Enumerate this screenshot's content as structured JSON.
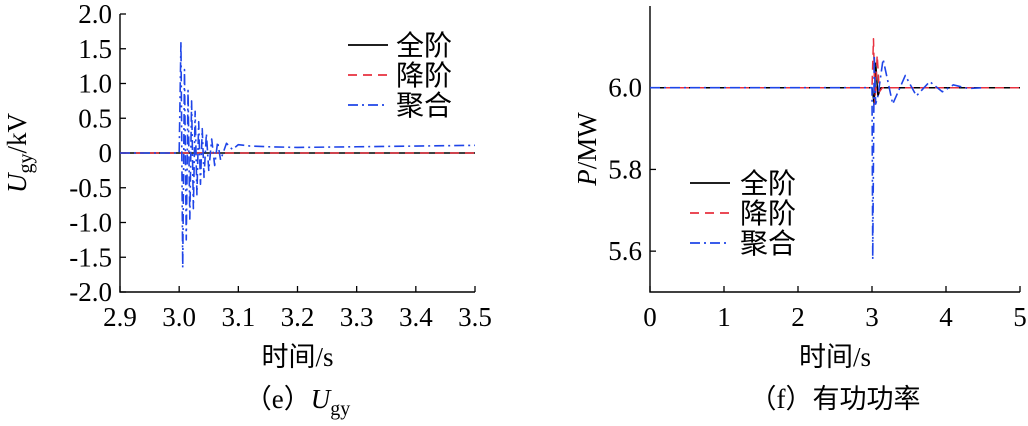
{
  "colors": {
    "full": "#000000",
    "reduced": "#e8313f",
    "aggregate": "#1f45e8"
  },
  "chart_data": [
    {
      "id": "e",
      "type": "line",
      "caption_prefix": "（e）",
      "caption_symbol": "U",
      "caption_sub": "gy",
      "xlabel": "时间/s",
      "ylabel_symbol": "U",
      "ylabel_sub": "gy",
      "ylabel_unit": "/kV",
      "xlim": [
        2.9,
        3.5
      ],
      "ylim": [
        -2.0,
        2.0
      ],
      "xticks": [
        2.9,
        3.0,
        3.1,
        3.2,
        3.3,
        3.4,
        3.5
      ],
      "xtick_labels": [
        "2.9",
        "3.0",
        "3.1",
        "3.2",
        "3.3",
        "3.4",
        "3.5"
      ],
      "yticks": [
        2.0,
        1.5,
        1.0,
        0.5,
        0,
        -0.5,
        -1.0,
        -1.5,
        -2.0
      ],
      "ytick_labels": [
        "2.0",
        "1.5",
        "1.0",
        "0.5",
        "0",
        "-0.5",
        "-1.0",
        "-1.5",
        "-2.0"
      ],
      "legend": [
        "全阶",
        "降阶",
        "聚合"
      ],
      "legend_position": "top-right",
      "series": [
        {
          "name": "全阶",
          "style": "solid",
          "x": [
            2.9,
            3.5
          ],
          "y": [
            0,
            0
          ]
        },
        {
          "name": "降阶",
          "style": "dashed",
          "x": [
            2.9,
            3.5
          ],
          "y": [
            0,
            0
          ]
        },
        {
          "name": "聚合",
          "style": "dashdot",
          "x": [
            2.9,
            3.0,
            3.003,
            3.006,
            3.009,
            3.012,
            3.015,
            3.018,
            3.021,
            3.024,
            3.027,
            3.03,
            3.033,
            3.036,
            3.039,
            3.042,
            3.046,
            3.05,
            3.055,
            3.06,
            3.065,
            3.07,
            3.08,
            3.09,
            3.1,
            3.12,
            3.15,
            3.2,
            3.3,
            3.4,
            3.5
          ],
          "y": [
            0,
            0,
            1.6,
            -1.65,
            1.2,
            -1.25,
            0.9,
            -0.95,
            0.75,
            -0.8,
            0.6,
            -0.6,
            0.45,
            -0.45,
            0.35,
            -0.35,
            0.28,
            -0.25,
            0.2,
            -0.18,
            0.16,
            -0.1,
            0.14,
            0.05,
            0.12,
            0.1,
            0.09,
            0.08,
            0.09,
            0.1,
            0.11
          ]
        }
      ]
    },
    {
      "id": "f",
      "type": "line",
      "caption": "（f）有功功率",
      "xlabel": "时间/s",
      "ylabel_symbol": "P",
      "ylabel_unit": "/MW",
      "xlim": [
        0,
        5
      ],
      "ylim": [
        5.5,
        6.2
      ],
      "xticks": [
        0,
        1,
        2,
        3,
        4,
        5
      ],
      "xtick_labels": [
        "0",
        "1",
        "2",
        "3",
        "4",
        "5"
      ],
      "yticks": [
        6.0,
        5.8,
        5.6
      ],
      "ytick_labels": [
        "6.0",
        "5.8",
        "5.6"
      ],
      "legend": [
        "全阶",
        "降阶",
        "聚合"
      ],
      "legend_position": "lower-left",
      "series": [
        {
          "name": "全阶",
          "style": "solid",
          "x": [
            0,
            3.0,
            3.03,
            3.05,
            3.08,
            3.12,
            5.0
          ],
          "y": [
            6.0,
            6.0,
            5.96,
            6.06,
            5.98,
            6.0,
            6.0
          ]
        },
        {
          "name": "降阶",
          "style": "dashed",
          "x": [
            0,
            3.0,
            3.02,
            3.04,
            3.07,
            3.1,
            3.14,
            5.0
          ],
          "y": [
            6.0,
            6.0,
            6.12,
            5.96,
            6.08,
            5.99,
            6.0,
            6.0
          ]
        },
        {
          "name": "聚合",
          "style": "dashdot",
          "x": [
            0,
            3.0,
            3.01,
            3.03,
            3.05,
            3.08,
            3.15,
            3.28,
            3.45,
            3.6,
            3.78,
            3.95,
            4.1,
            4.3,
            4.5
          ],
          "y": [
            6.0,
            6.0,
            5.58,
            6.08,
            5.96,
            5.98,
            6.07,
            5.96,
            6.03,
            5.98,
            6.015,
            5.99,
            6.007,
            5.998,
            6.0
          ]
        }
      ]
    }
  ]
}
